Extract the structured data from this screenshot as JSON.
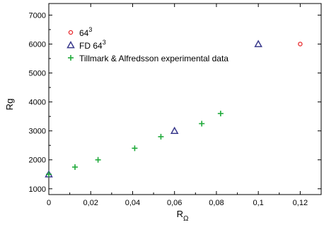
{
  "chart_data": {
    "type": "scatter",
    "xlabel": "R",
    "xlabel_sub": "Ω",
    "ylabel": "Rg",
    "xlim": [
      0,
      0.13
    ],
    "ylim": [
      800,
      7400
    ],
    "x_ticks": [
      0,
      0.02,
      0.04,
      0.06,
      0.08,
      0.1,
      0.12
    ],
    "x_tick_labels": [
      "0",
      "0,02",
      "0,04",
      "0,06",
      "0,08",
      "0,1",
      "0,12"
    ],
    "y_ticks": [
      1000,
      2000,
      3000,
      4000,
      5000,
      6000,
      7000
    ],
    "y_tick_labels": [
      "1000",
      "2000",
      "3000",
      "4000",
      "5000",
      "6000",
      "7000"
    ],
    "grid": false,
    "legend_position": "top-left",
    "series": [
      {
        "name": "64",
        "name_sup": "3",
        "marker": "circle",
        "color": "#e8282b",
        "points": [
          [
            0.12,
            6000
          ]
        ]
      },
      {
        "name": "FD 64",
        "name_sup": "3",
        "marker": "triangle",
        "color": "#3a3a8c",
        "points": [
          [
            0,
            1500
          ],
          [
            0.06,
            3000
          ],
          [
            0.1,
            6000
          ]
        ]
      },
      {
        "name": "Tillmark & Alfredsson experimental data",
        "marker": "plus",
        "color": "#1faa3a",
        "points": [
          [
            0,
            1500
          ],
          [
            0.0125,
            1750
          ],
          [
            0.0235,
            2000
          ],
          [
            0.041,
            2400
          ],
          [
            0.0535,
            2800
          ],
          [
            0.073,
            3250
          ],
          [
            0.082,
            3600
          ]
        ]
      }
    ]
  }
}
